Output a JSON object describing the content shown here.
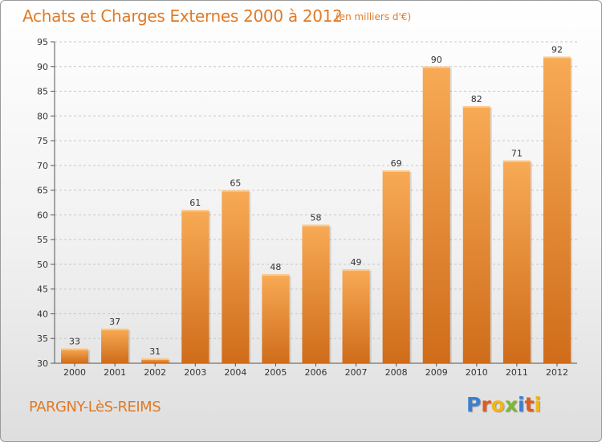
{
  "header": {
    "title": "Achats et Charges Externes 2000 à 2012",
    "subtitle": "(en milliers d'€)"
  },
  "footer": {
    "location": "PARGNY-LèS-REIMS",
    "logo_letters": [
      {
        "ch": "P",
        "color": "#3b7fd1"
      },
      {
        "ch": "r",
        "color": "#e05b1f"
      },
      {
        "ch": "o",
        "color": "#f3b51b"
      },
      {
        "ch": "x",
        "color": "#7cb834"
      },
      {
        "ch": "i",
        "color": "#3b7fd1"
      },
      {
        "ch": "t",
        "color": "#e05b1f"
      },
      {
        "ch": "i",
        "color": "#f3b51b"
      }
    ]
  },
  "colors": {
    "accent": "#e07a26",
    "bar_light": "#f7a752",
    "bar_dark": "#d06d1b",
    "grid": "#c8c8c8"
  },
  "chart_data": {
    "type": "bar",
    "title": "Achats et Charges Externes 2000 à 2012",
    "subtitle": "(en milliers d'€)",
    "categories": [
      "2000",
      "2001",
      "2002",
      "2003",
      "2004",
      "2005",
      "2006",
      "2007",
      "2008",
      "2009",
      "2010",
      "2011",
      "2012"
    ],
    "values": [
      33,
      37,
      31,
      61,
      65,
      48,
      58,
      49,
      69,
      90,
      82,
      71,
      92
    ],
    "yticks": [
      30,
      35,
      40,
      45,
      50,
      55,
      60,
      65,
      70,
      75,
      80,
      85,
      90,
      95
    ],
    "ylim": [
      30,
      95
    ],
    "xlabel": "",
    "ylabel": "",
    "grid": "horizontal dashed",
    "data_labels": true
  }
}
